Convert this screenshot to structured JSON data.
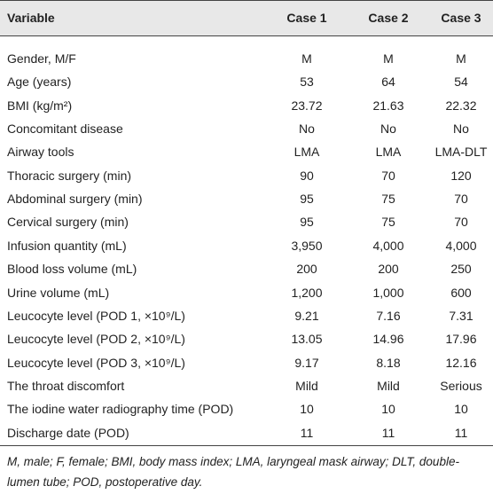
{
  "table": {
    "header": [
      "Variable",
      "Case 1",
      "Case 2",
      "Case 3"
    ],
    "rows": [
      [
        "Gender, M/F",
        "M",
        "M",
        "M"
      ],
      [
        "Age (years)",
        "53",
        "64",
        "54"
      ],
      [
        "BMI (kg/m²)",
        "23.72",
        "21.63",
        "22.32"
      ],
      [
        "Concomitant disease",
        "No",
        "No",
        "No"
      ],
      [
        "Airway tools",
        "LMA",
        "LMA",
        "LMA-DLT"
      ],
      [
        "Thoracic surgery (min)",
        "90",
        "70",
        "120"
      ],
      [
        "Abdominal surgery (min)",
        "95",
        "75",
        "70"
      ],
      [
        "Cervical surgery (min)",
        "95",
        "75",
        "70"
      ],
      [
        "Infusion quantity (mL)",
        "3,950",
        "4,000",
        "4,000"
      ],
      [
        "Blood loss volume (mL)",
        "200",
        "200",
        "250"
      ],
      [
        "Urine volume (mL)",
        "1,200",
        "1,000",
        "600"
      ],
      [
        "Leucocyte level (POD 1, ×10⁹/L)",
        "9.21",
        "7.16",
        "7.31"
      ],
      [
        "Leucocyte level (POD 2, ×10⁹/L)",
        "13.05",
        "14.96",
        "17.96"
      ],
      [
        "Leucocyte level (POD 3, ×10⁹/L)",
        "9.17",
        "8.18",
        "12.16"
      ],
      [
        "The throat discomfort",
        "Mild",
        "Mild",
        "Serious"
      ],
      [
        "The iodine water radiography time (POD)",
        "10",
        "10",
        "10"
      ],
      [
        "Discharge date (POD)",
        "11",
        "11",
        "11"
      ]
    ]
  },
  "footnote": "M, male; F, female; BMI, body mass index; LMA, laryngeal mask airway; DLT, double-lumen tube; POD, postoperative day."
}
